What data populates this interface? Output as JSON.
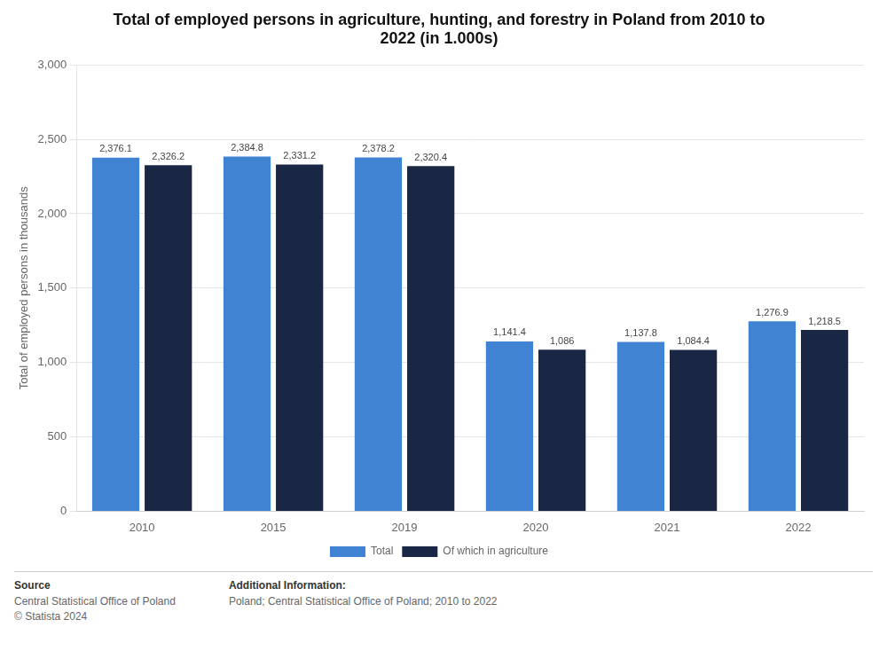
{
  "chart_data": {
    "type": "bar",
    "title": "Total of employed persons in agriculture, hunting, and forestry in Poland from 2010 to\n2022 (in 1.000s)",
    "y_label": "Total of employed persons in thousands",
    "categories": [
      "2010",
      "2015",
      "2019",
      "2020",
      "2021",
      "2022"
    ],
    "series": [
      {
        "name": "Total",
        "color": "#3f83d2",
        "values": [
          2376.1,
          2384.8,
          2378.2,
          1141.4,
          1137.8,
          1276.9
        ],
        "value_labels": [
          "2,376.1",
          "2,384.8",
          "2,378.2",
          "1,141.4",
          "1,137.8",
          "1,276.9"
        ]
      },
      {
        "name": "Of which in agriculture",
        "color": "#1a2744",
        "values": [
          2326.2,
          2331.2,
          2320.4,
          1086.0,
          1084.4,
          1218.5
        ],
        "value_labels": [
          "2,326.2",
          "2,331.2",
          "2,320.4",
          "1,086",
          "1,084.4",
          "1,218.5"
        ]
      }
    ],
    "ylim": [
      0,
      3000
    ],
    "yticks": [
      0,
      500,
      {
        "value": 1000,
        "label": "1,000"
      },
      {
        "value": 1500,
        "label": "1,500"
      },
      {
        "value": 2000,
        "label": "2,000"
      },
      {
        "value": 2500,
        "label": "2,500"
      },
      {
        "value": 3000,
        "label": "3,000"
      }
    ],
    "grid": true,
    "legend": "bottom",
    "data_labels": true,
    "annotations": [
      {
        "title": "Source",
        "text": "Central Statistical Office of Poland\n© Statista 2024"
      },
      {
        "title": "Additional Information:",
        "text": "Poland; Central Statistical Office of Poland; 2010 to 2022"
      }
    ]
  }
}
